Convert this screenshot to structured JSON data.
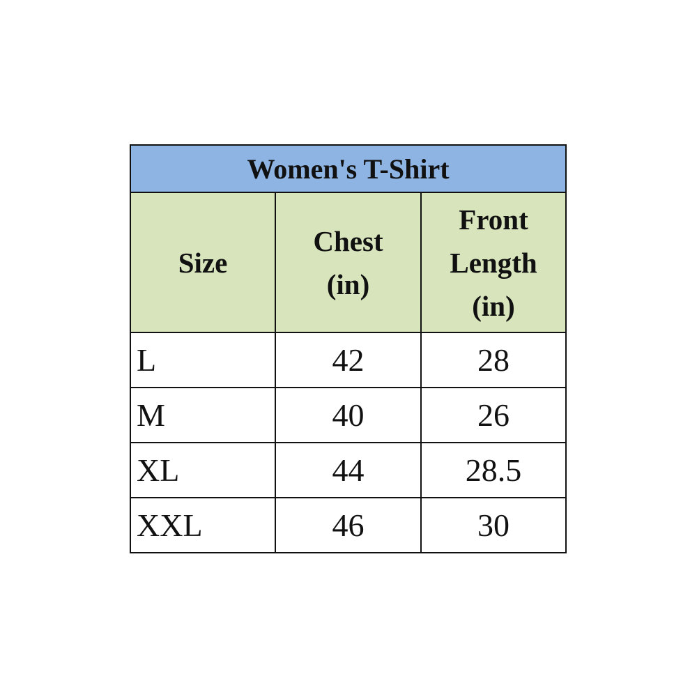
{
  "table": {
    "title": "Women's T-Shirt",
    "headers": [
      "Size",
      "Chest (in)",
      "Front Length (in)"
    ],
    "rows": [
      [
        "L",
        "42",
        "28"
      ],
      [
        "M",
        "40",
        "26"
      ],
      [
        "XL",
        "44",
        "28.5"
      ],
      [
        "XXL",
        "46",
        "30"
      ]
    ],
    "colors": {
      "title_bg": "#8db4e2",
      "header_bg": "#d8e4bc",
      "border": "#111111"
    }
  }
}
